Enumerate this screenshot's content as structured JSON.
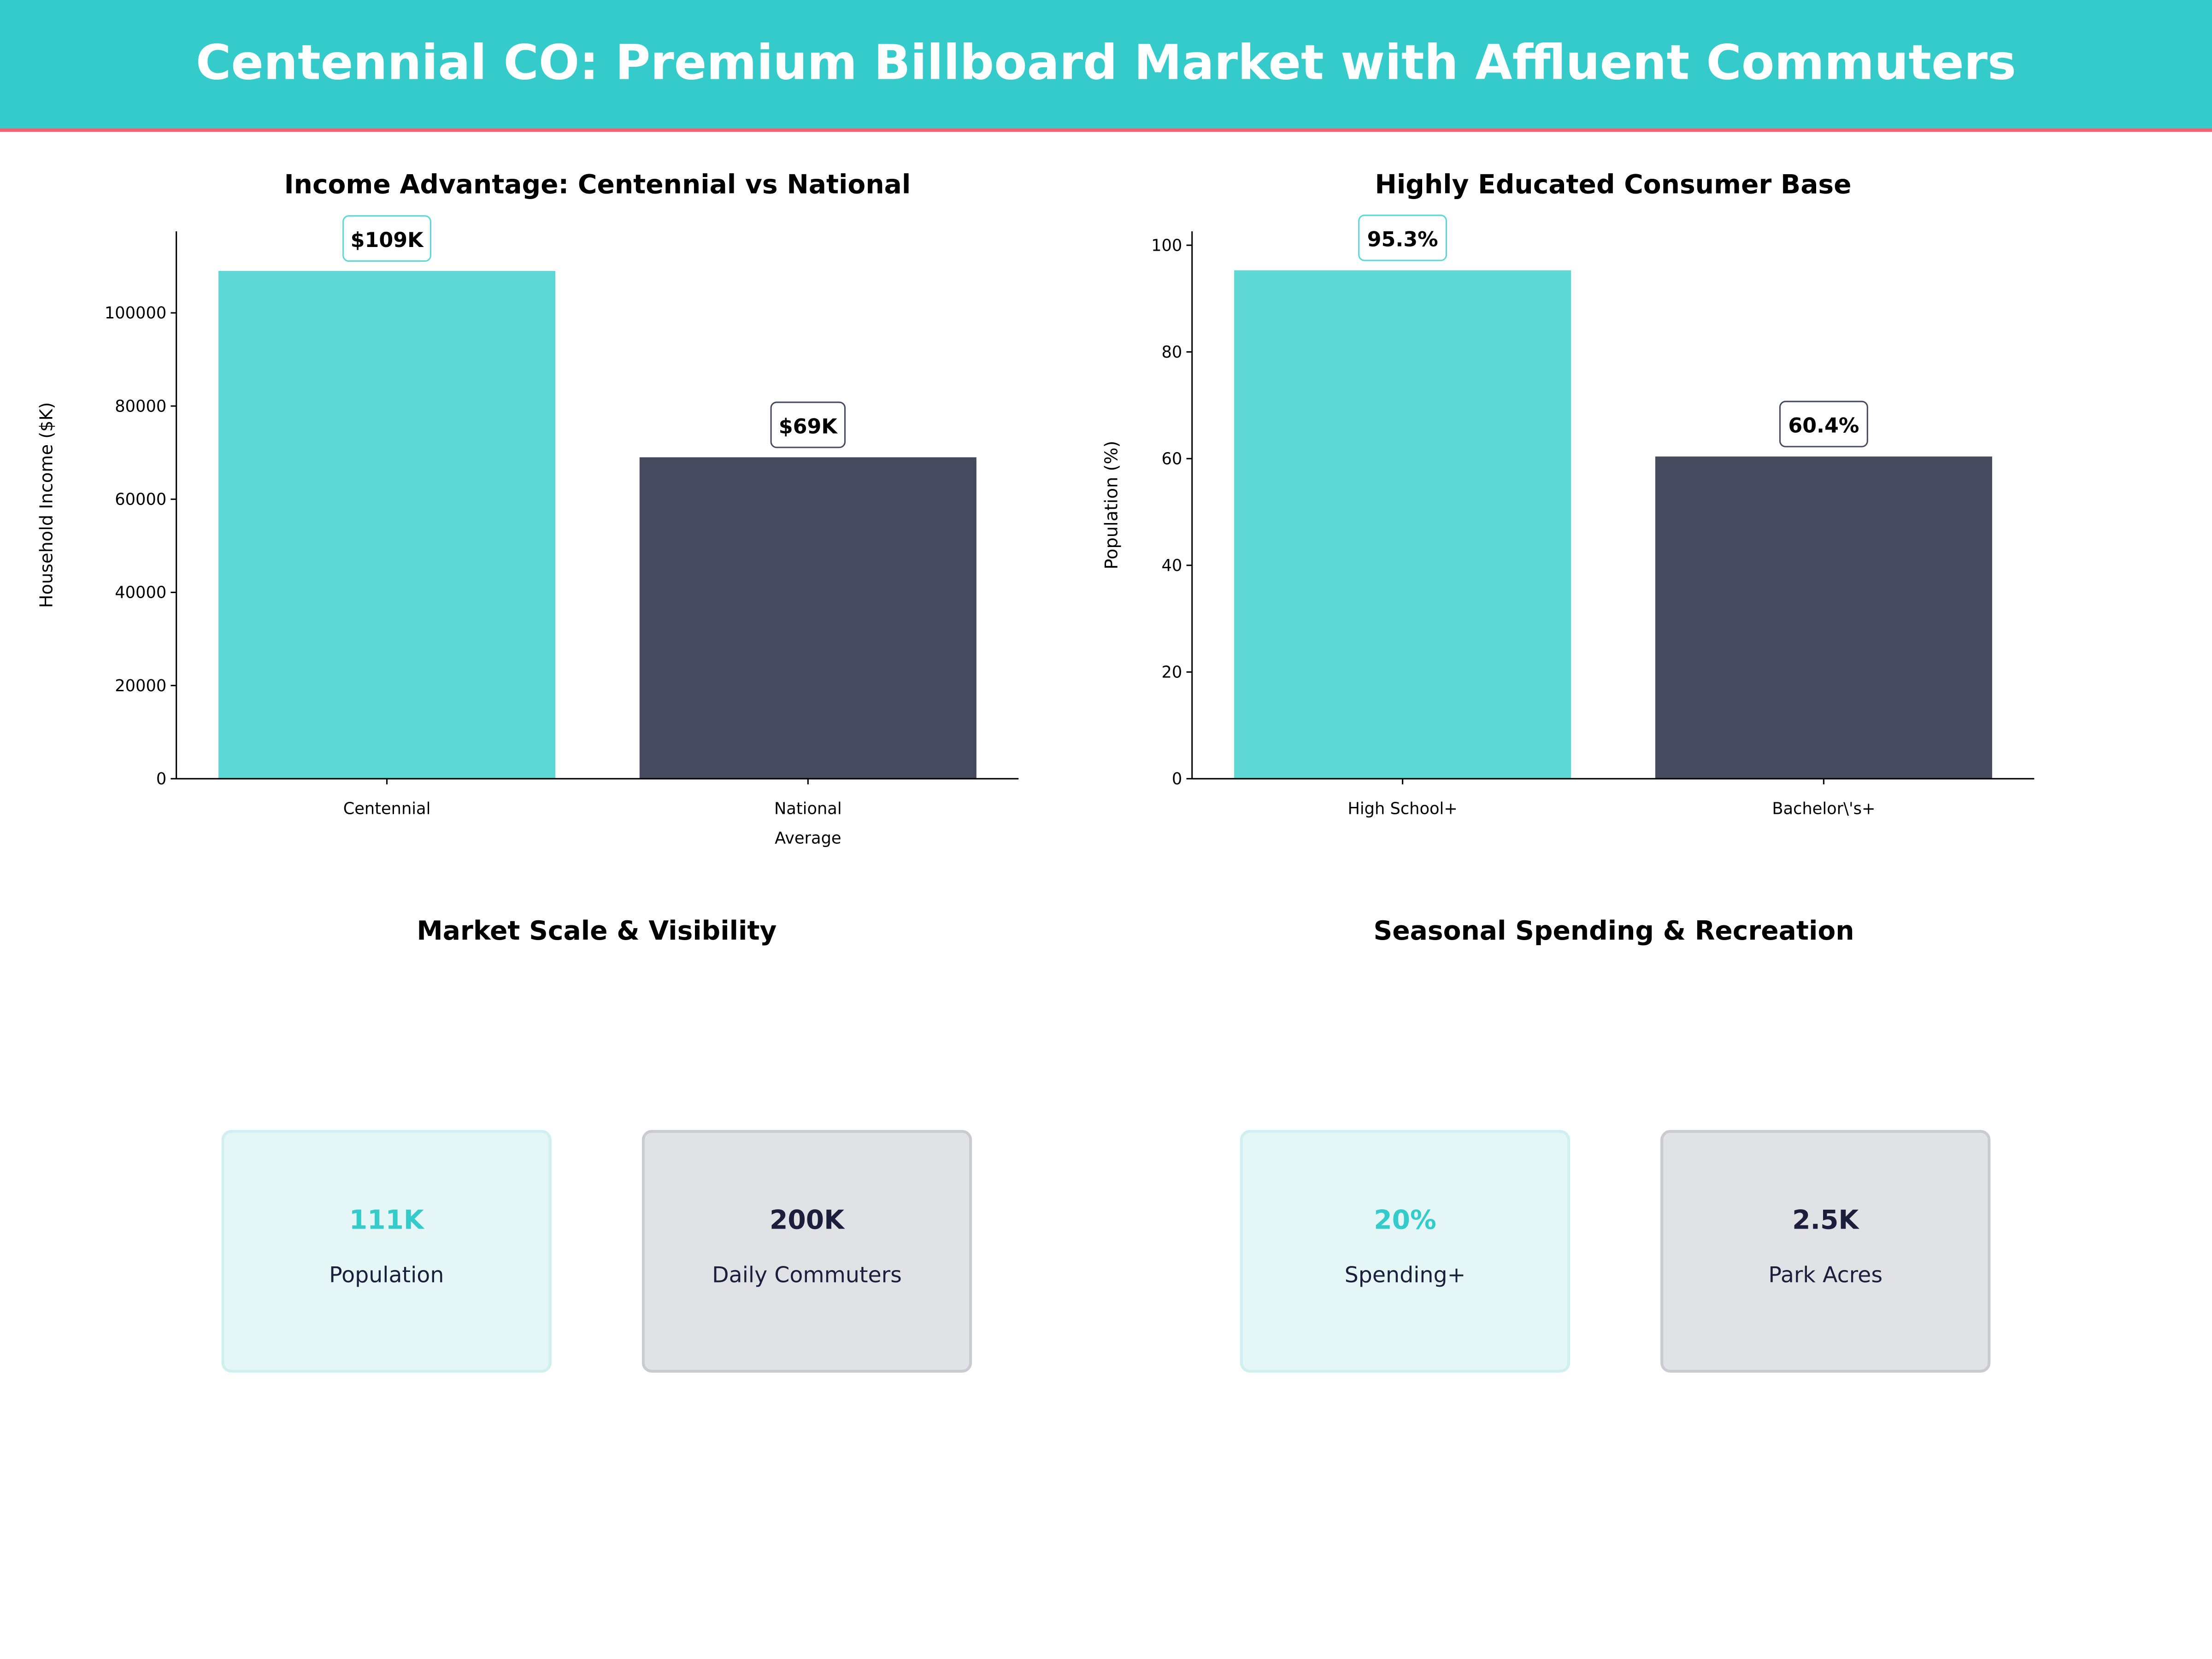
{
  "header": {
    "title": "Centennial CO: Premium Billboard Market with Affluent Commuters",
    "bg_color": "#36CBCB",
    "accent_line_color": "#F06478"
  },
  "colors": {
    "teal": "#5DD8D5",
    "dark": "#464A5F",
    "teal_text": "#36CBCB",
    "navy_text": "#1B1F3B"
  },
  "chart_data": [
    {
      "type": "bar",
      "title": "Income Advantage: Centennial vs National",
      "ylabel": "Household Income ($K)",
      "xlabel": "",
      "categories": [
        "Centennial",
        "National\nAverage"
      ],
      "category_lines": [
        [
          "Centennial"
        ],
        [
          "National",
          "Average"
        ]
      ],
      "values": [
        109000,
        69000
      ],
      "data_labels": [
        "$109K",
        "$69K"
      ],
      "bar_colors": [
        "#5DD8D5",
        "#464A5F"
      ],
      "ylim": [
        0,
        117500
      ],
      "yticks": [
        0,
        20000,
        40000,
        60000,
        80000,
        100000
      ],
      "ytick_labels": [
        "0",
        "20000",
        "40000",
        "60000",
        "80000",
        "100000"
      ],
      "grid": false
    },
    {
      "type": "bar",
      "title": "Highly Educated Consumer Base",
      "ylabel": "Population (%)",
      "xlabel": "",
      "categories": [
        "High School+",
        "Bachelor\\'s+"
      ],
      "category_lines": [
        [
          "High School+"
        ],
        [
          "Bachelor\\'s+"
        ]
      ],
      "values": [
        95.3,
        60.4
      ],
      "data_labels": [
        "95.3%",
        "60.4%"
      ],
      "bar_colors": [
        "#5DD8D5",
        "#464A5F"
      ],
      "ylim": [
        0,
        102.6
      ],
      "yticks": [
        0,
        20,
        40,
        60,
        80,
        100
      ],
      "ytick_labels": [
        "0",
        "20",
        "40",
        "60",
        "80",
        "100"
      ],
      "grid": false
    }
  ],
  "panels": [
    {
      "title": "Market Scale & Visibility",
      "cards": [
        {
          "value": "111K",
          "label": "Population",
          "style": "teal"
        },
        {
          "value": "200K",
          "label": "Daily Commuters",
          "style": "dark"
        }
      ]
    },
    {
      "title": "Seasonal Spending & Recreation",
      "cards": [
        {
          "value": "20%",
          "label": "Spending+",
          "style": "teal"
        },
        {
          "value": "2.5K",
          "label": "Park Acres",
          "style": "dark"
        }
      ]
    }
  ]
}
